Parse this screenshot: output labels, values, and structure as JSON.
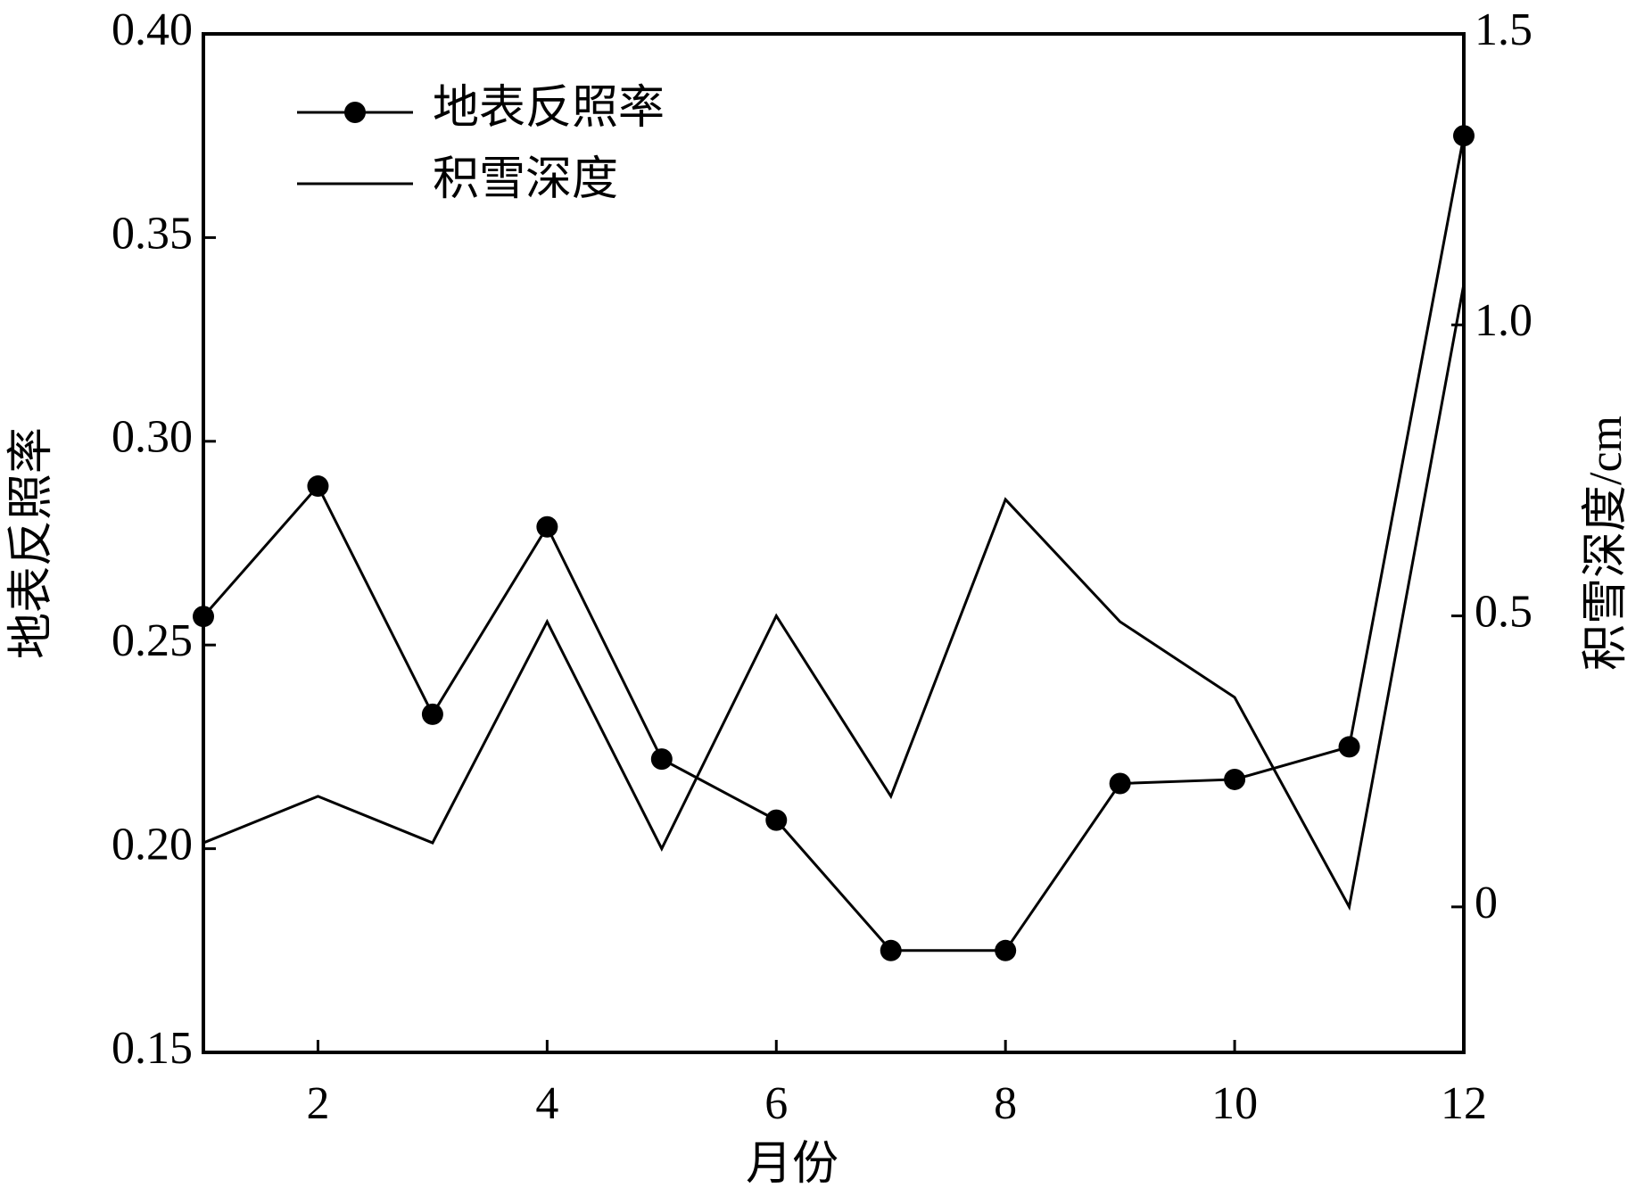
{
  "chart_data": {
    "type": "line",
    "x_label": "月份",
    "y_label": "地表反照率",
    "y2_label": "积雪深度/cm",
    "x": [
      1,
      2,
      3,
      4,
      5,
      6,
      7,
      8,
      9,
      10,
      11,
      12
    ],
    "series": [
      {
        "name": "地表反照率",
        "color": "#000000",
        "marker": "circle",
        "axis": "y",
        "values": [
          0.257,
          0.289,
          0.233,
          0.279,
          0.222,
          0.207,
          0.175,
          0.175,
          0.216,
          0.217,
          0.225,
          0.375
        ]
      },
      {
        "name": "积雪深度",
        "color": "#000000",
        "axis": "y2",
        "values": [
          0.11,
          0.19,
          0.11,
          0.49,
          0.1,
          0.5,
          0.19,
          0.7,
          0.49,
          0.36,
          0,
          1.07
        ]
      }
    ],
    "xlim": [
      1,
      12
    ],
    "xticks": [
      2,
      4,
      6,
      8,
      10,
      12
    ],
    "ylim": [
      0.15,
      0.4
    ],
    "yticks": [
      {
        "value": 0.15,
        "label": "0.15"
      },
      {
        "value": 0.2,
        "label": "0.20"
      },
      {
        "value": 0.25,
        "label": "0.25"
      },
      {
        "value": 0.3,
        "label": "0.30"
      },
      {
        "value": 0.35,
        "label": "0.35"
      },
      {
        "value": 0.4,
        "label": "0.40"
      }
    ],
    "y2lim": [
      -0.25,
      1.5
    ],
    "y2ticks": [
      0,
      0.5,
      {
        "value": 1,
        "label": "1.0"
      },
      1.5
    ],
    "grid": false,
    "legend": "upper left"
  }
}
